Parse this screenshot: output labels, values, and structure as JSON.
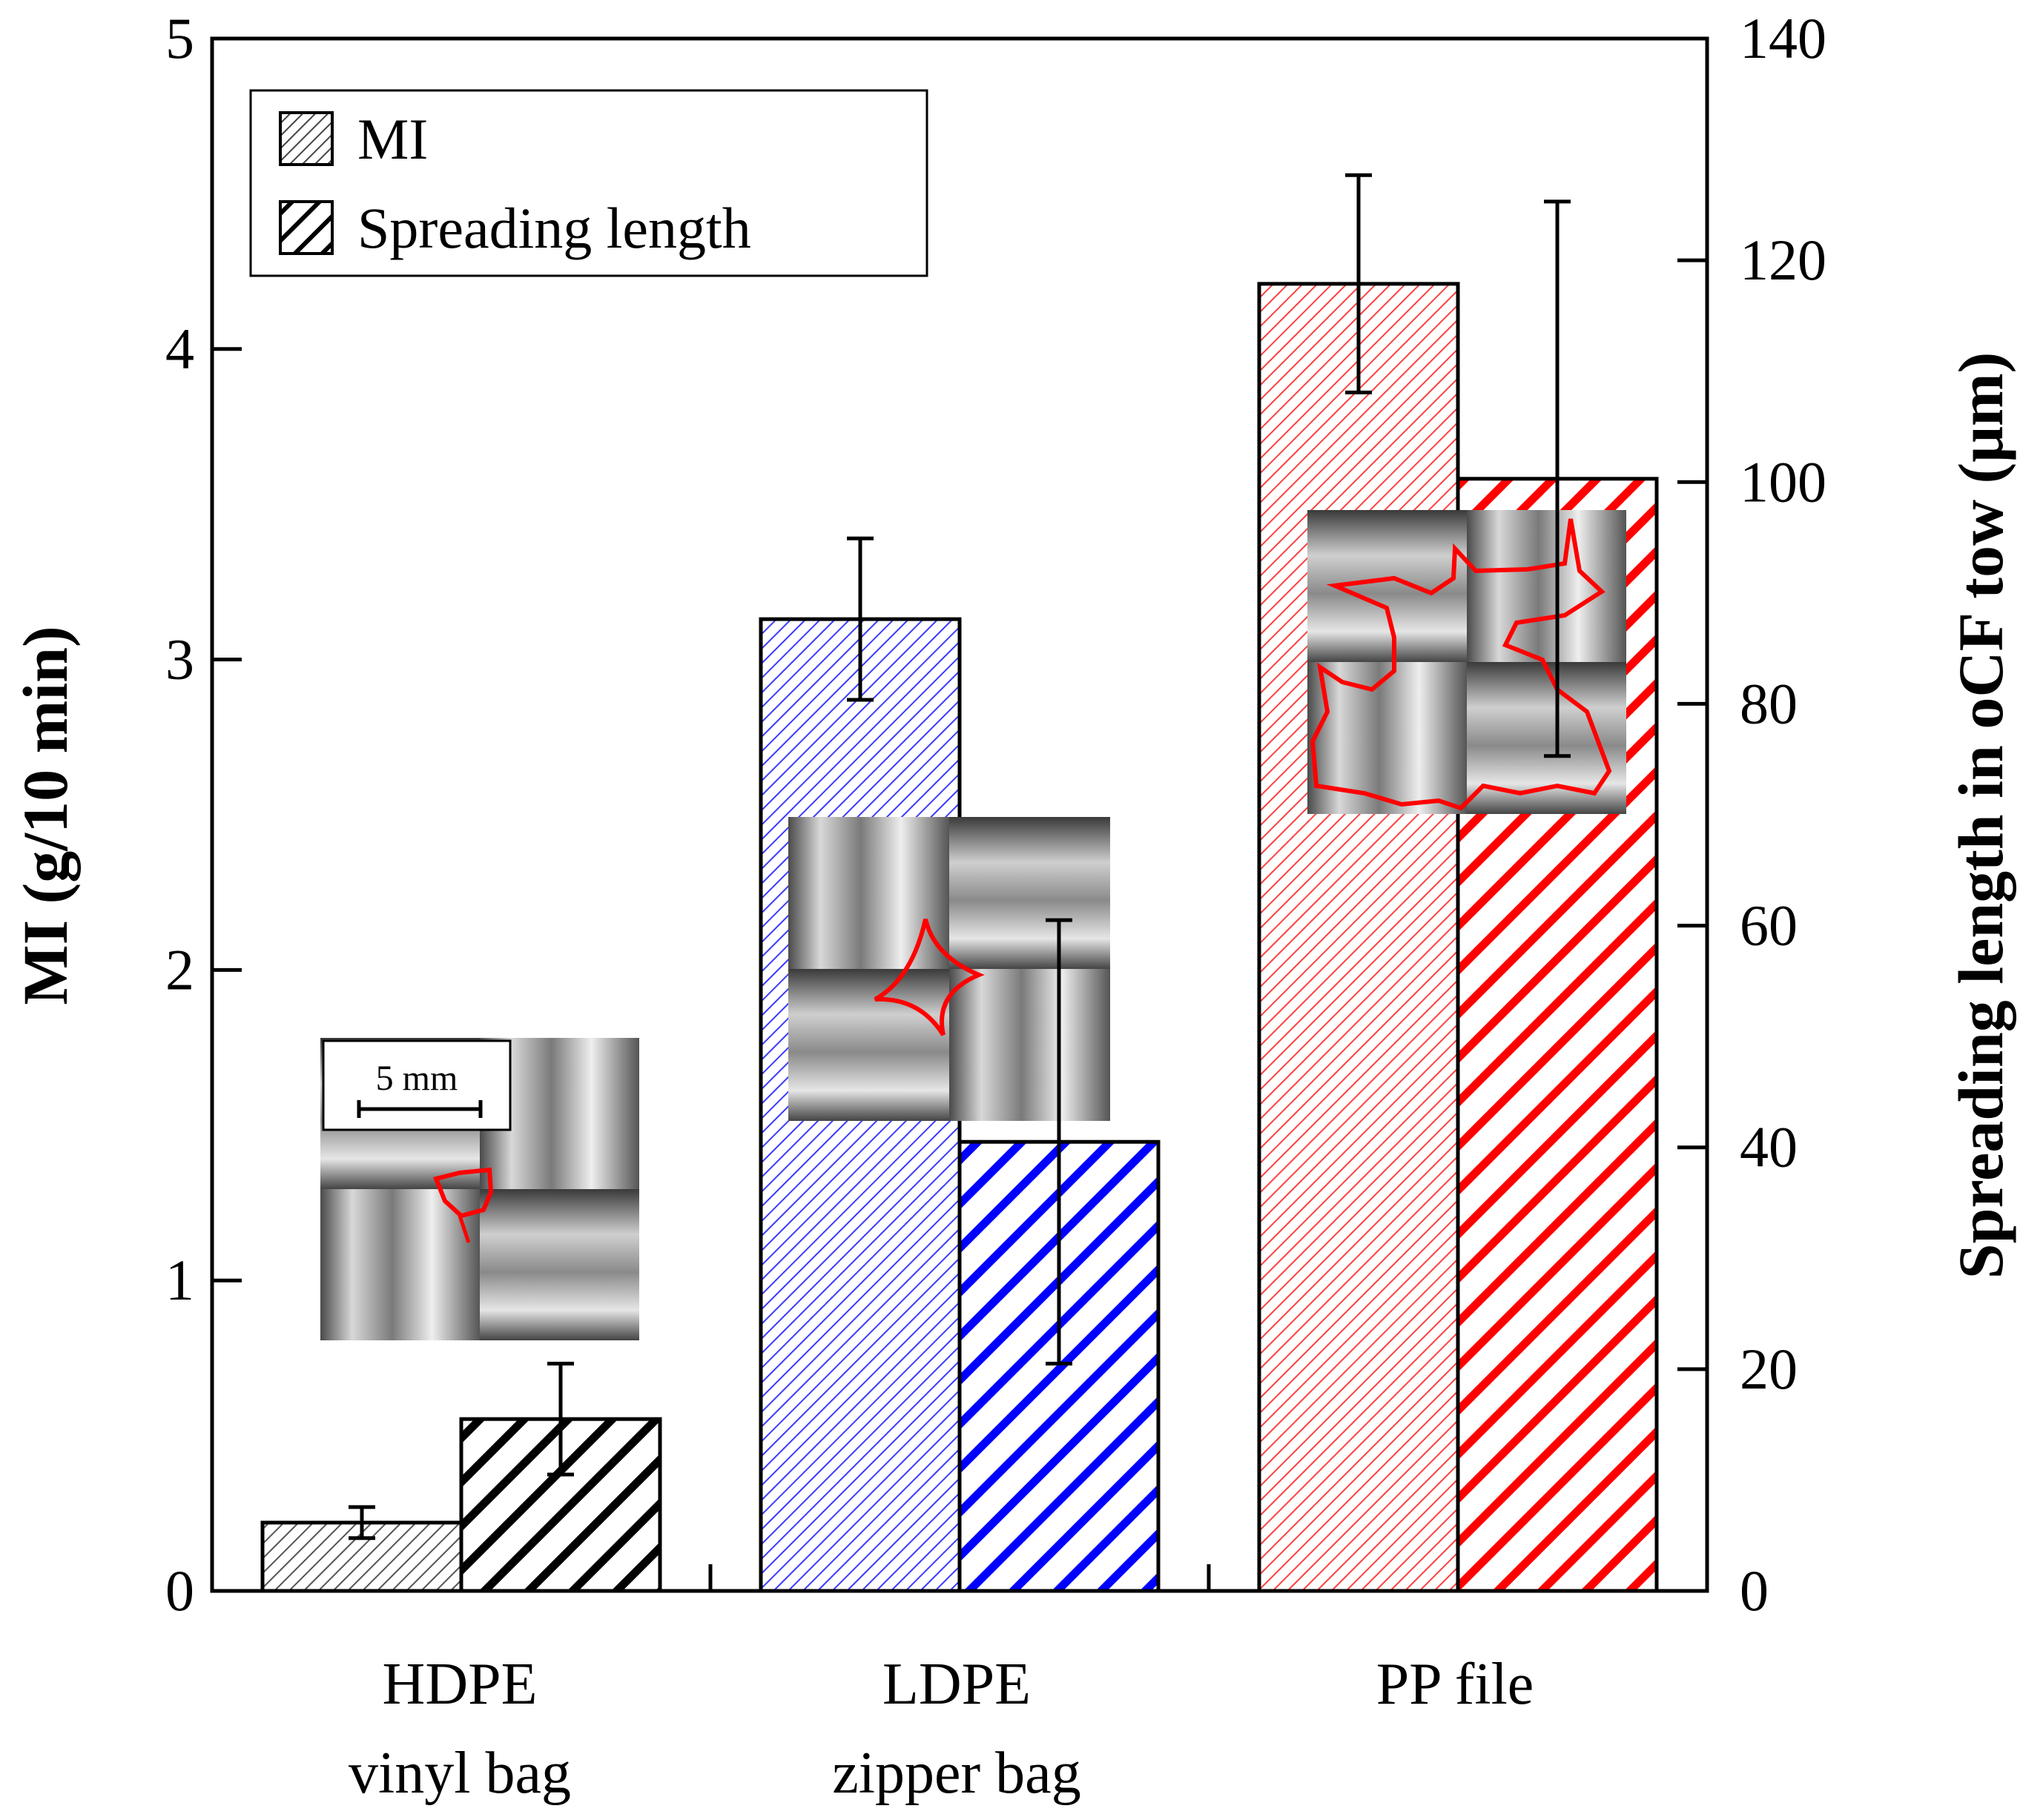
{
  "chart_data": {
    "type": "bar",
    "categories": [
      [
        "HDPE",
        "vinyl bag"
      ],
      [
        "LDPE",
        "zipper bag"
      ],
      [
        "PP file"
      ]
    ],
    "series": [
      {
        "name": "MI",
        "axis": "left",
        "values": [
          0.22,
          3.13,
          4.21
        ],
        "errors": [
          0.05,
          0.26,
          0.35
        ],
        "pattern": "fine-hatch"
      },
      {
        "name": "Spreading length",
        "axis": "right",
        "values": [
          15.5,
          40.5,
          100.3
        ],
        "errors": [
          5.0,
          20.0,
          25.0
        ],
        "pattern": "bold-hatch"
      }
    ],
    "category_colors": [
      "#000000",
      "#0000ff",
      "#ff0000"
    ],
    "ylabel_left": "MI (g/10 min)",
    "ylabel_right": "Spreading length in oCF tow (μm)",
    "ylim_left": [
      0,
      5
    ],
    "ylim_right": [
      0,
      140
    ],
    "yticks_left": [
      "0",
      "1",
      "2",
      "3",
      "4",
      "5"
    ],
    "yticks_right": [
      "0",
      "20",
      "40",
      "60",
      "80",
      "100",
      "120",
      "140"
    ],
    "legend": {
      "placement": "top-left",
      "entries": [
        "MI",
        "Spreading length"
      ]
    },
    "scale_bar_label": "5 mm"
  }
}
